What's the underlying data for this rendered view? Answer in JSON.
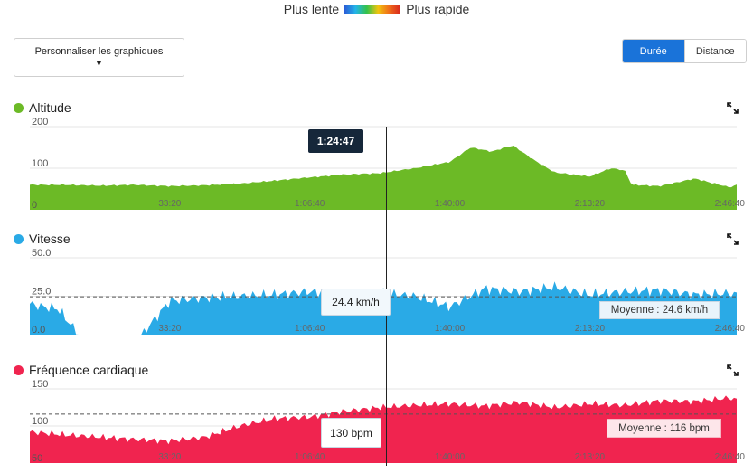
{
  "legend": {
    "slow_label": "Plus lente",
    "fast_label": "Plus rapide"
  },
  "controls": {
    "customize_label": "Personnaliser les graphiques",
    "caret": "▼",
    "toggle": [
      {
        "label": "Durée",
        "active": true
      },
      {
        "label": "Distance",
        "active": false
      }
    ]
  },
  "cursor": {
    "time_label": "1:24:47",
    "time_seconds": 5087
  },
  "x_axis": {
    "max_seconds": 10100,
    "ticks": [
      {
        "label": "33:20",
        "seconds": 2000
      },
      {
        "label": "1:06:40",
        "seconds": 4000
      },
      {
        "label": "1:40:00",
        "seconds": 6000
      },
      {
        "label": "2:13:20",
        "seconds": 8000
      },
      {
        "label": "2:46:40",
        "seconds": 10000
      }
    ]
  },
  "panels": {
    "altitude": {
      "title": "Altitude",
      "color": "#6cba26",
      "y_ticks": [
        "200",
        "100",
        "0"
      ],
      "ymax": 200
    },
    "speed": {
      "title": "Vitesse",
      "color": "#2aaae6",
      "y_ticks": [
        "50.0",
        "25.0",
        "0.0"
      ],
      "ymax": 50,
      "tooltip": "24.4 km/h",
      "average_label": "Moyenne : 24.6 km/h",
      "average": 24.6
    },
    "heart": {
      "title": "Fréquence cardiaque",
      "color": "#f0244f",
      "y_ticks": [
        "150",
        "100",
        "50"
      ],
      "ymin": 50,
      "ymax": 150,
      "tooltip": "130 bpm",
      "average_label": "Moyenne : 116 bpm",
      "average": 116
    }
  },
  "chart_data": [
    {
      "type": "area",
      "title": "Altitude",
      "ylim": [
        0,
        200
      ],
      "x": [
        0,
        500,
        1000,
        1500,
        2000,
        2500,
        3000,
        3500,
        4000,
        4500,
        5000,
        5500,
        6000,
        6300,
        6600,
        6900,
        7200,
        7500,
        8000,
        8300,
        8500,
        8600,
        9000,
        9500,
        10000,
        10100
      ],
      "y": [
        60,
        60,
        58,
        60,
        57,
        59,
        63,
        70,
        78,
        85,
        88,
        100,
        115,
        150,
        140,
        155,
        120,
        90,
        80,
        100,
        95,
        60,
        57,
        75,
        54,
        60
      ]
    },
    {
      "type": "area",
      "title": "Vitesse",
      "ylim": [
        0,
        50
      ],
      "x": [
        0,
        200,
        400,
        700,
        900,
        1600,
        2000,
        2500,
        3000,
        3500,
        4000,
        4500,
        5000,
        5500,
        6000,
        6500,
        7000,
        7500,
        8000,
        8500,
        9000,
        9500,
        10000,
        10100
      ],
      "y": [
        20,
        18,
        17,
        0,
        0,
        0,
        22,
        24,
        25,
        26,
        28,
        26,
        27,
        25,
        18,
        30,
        28,
        31,
        26,
        28,
        29,
        26,
        27,
        26
      ]
    },
    {
      "type": "area",
      "title": "Fréquence cardiaque",
      "ylim": [
        50,
        150
      ],
      "x": [
        0,
        500,
        1000,
        1500,
        2000,
        2500,
        3000,
        3500,
        4000,
        4500,
        5000,
        5500,
        6000,
        6500,
        7000,
        7500,
        8000,
        8500,
        9000,
        9500,
        10000,
        10100
      ],
      "y": [
        92,
        88,
        85,
        82,
        80,
        85,
        100,
        110,
        112,
        120,
        125,
        128,
        130,
        127,
        132,
        125,
        130,
        128,
        134,
        133,
        138,
        135
      ]
    }
  ]
}
